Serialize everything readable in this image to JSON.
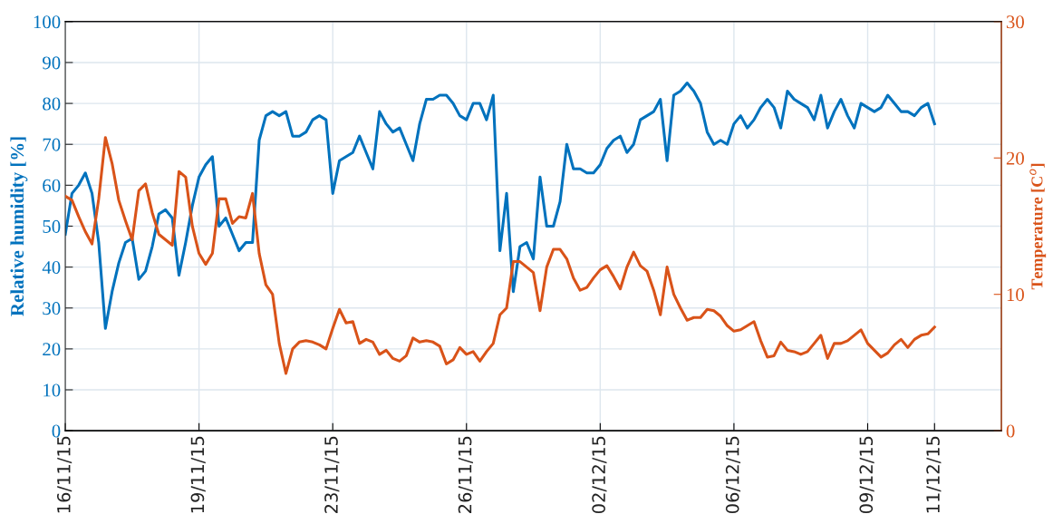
{
  "chart_data": {
    "type": "line",
    "ylabel": "Relative humidity [%]",
    "y2label": "Temperature [C$^{o}$]",
    "categories": [
      "16/11/15",
      null,
      null,
      null,
      null,
      null,
      null,
      null,
      null,
      null,
      null,
      null,
      null,
      null,
      null,
      null,
      null,
      null,
      null,
      null,
      "19/11/15",
      null,
      null,
      null,
      null,
      null,
      null,
      null,
      null,
      null,
      null,
      null,
      null,
      null,
      null,
      null,
      null,
      null,
      null,
      null,
      "23/11/15",
      null,
      null,
      null,
      null,
      null,
      null,
      null,
      null,
      null,
      null,
      null,
      null,
      null,
      null,
      null,
      null,
      null,
      null,
      null,
      "26/11/15",
      null,
      null,
      null,
      null,
      null,
      null,
      null,
      null,
      null,
      null,
      null,
      null,
      null,
      null,
      null,
      null,
      null,
      null,
      null,
      "02/12/15",
      null,
      null,
      null,
      null,
      null,
      null,
      null,
      null,
      null,
      null,
      null,
      null,
      null,
      null,
      null,
      null,
      null,
      null,
      null,
      "06/12/15",
      null,
      null,
      null,
      null,
      null,
      null,
      null,
      null,
      null,
      null,
      null,
      null,
      null,
      null,
      null,
      null,
      null,
      null,
      null,
      "09/12/15",
      null,
      null,
      null,
      null,
      null,
      null,
      null,
      null,
      null,
      "11/12/15",
      null,
      null,
      null,
      null,
      null,
      null,
      null,
      null,
      null,
      null
    ],
    "ylim": [
      0,
      100
    ],
    "yticks": [
      0,
      10,
      20,
      30,
      40,
      50,
      60,
      70,
      80,
      90,
      100
    ],
    "y2lim": [
      0,
      30
    ],
    "y2ticks": [
      0,
      10,
      20,
      30
    ],
    "grid": true,
    "marker": "none",
    "line_style": "solid",
    "series": [
      {
        "color": "#0072bd",
        "values": [
          48,
          58,
          60,
          63,
          58,
          46,
          25,
          34,
          41,
          46,
          47,
          37,
          39,
          45,
          53,
          54,
          52,
          38,
          46,
          55,
          62,
          65,
          67,
          50,
          52,
          48,
          44,
          46,
          46,
          71,
          77,
          78,
          77,
          78,
          72,
          72,
          73,
          76,
          77,
          76,
          58,
          66,
          67,
          68,
          72,
          68,
          64,
          78,
          75,
          73,
          74,
          70,
          66,
          75,
          81,
          81,
          82,
          82,
          80,
          77,
          76,
          80,
          80,
          76,
          82,
          44,
          58,
          34,
          45,
          46,
          42,
          62,
          50,
          50,
          56,
          70,
          64,
          64,
          63,
          63,
          65,
          69,
          71,
          72,
          68,
          70,
          76,
          77,
          78,
          81,
          66,
          82,
          83,
          85,
          83,
          80,
          73,
          70,
          71,
          70,
          75,
          77,
          74,
          76,
          79,
          81,
          79,
          74,
          83,
          81,
          80,
          79,
          76,
          82,
          74,
          78,
          81,
          77,
          74,
          80,
          79,
          78,
          79,
          82,
          80,
          78,
          78,
          77,
          79,
          80,
          75,
          null,
          null,
          null,
          null,
          null,
          null,
          null,
          null,
          null,
          null
        ]
      },
      {
        "color": "#d95319",
        "axis": "y2",
        "values": [
          17.2,
          16.9,
          15.7,
          14.6,
          13.7,
          17.0,
          21.5,
          19.6,
          16.9,
          15.4,
          14.0,
          17.6,
          18.1,
          16.0,
          14.4,
          14.0,
          13.6,
          19.0,
          18.6,
          15.0,
          13.0,
          12.2,
          13.0,
          17.0,
          17.0,
          15.2,
          15.7,
          15.6,
          17.4,
          13.0,
          10.7,
          10.0,
          6.4,
          4.2,
          6.0,
          6.5,
          6.6,
          6.5,
          6.3,
          6.0,
          7.5,
          8.9,
          7.9,
          8.0,
          6.4,
          6.7,
          6.5,
          5.6,
          5.9,
          5.3,
          5.1,
          5.5,
          6.8,
          6.5,
          6.6,
          6.5,
          6.2,
          4.9,
          5.2,
          6.1,
          5.6,
          5.8,
          5.1,
          5.8,
          6.4,
          8.5,
          9.0,
          12.4,
          12.4,
          12.0,
          11.6,
          8.8,
          12.0,
          13.3,
          13.3,
          12.6,
          11.2,
          10.3,
          10.5,
          11.2,
          11.8,
          12.1,
          11.3,
          10.4,
          12.0,
          13.1,
          12.1,
          11.7,
          10.3,
          8.5,
          12.0,
          10.0,
          9.0,
          8.1,
          8.3,
          8.3,
          8.9,
          8.8,
          8.4,
          7.7,
          7.3,
          7.4,
          7.7,
          8.0,
          6.6,
          5.4,
          5.5,
          6.5,
          5.9,
          5.8,
          5.6,
          5.8,
          6.4,
          7.0,
          5.3,
          6.4,
          6.4,
          6.6,
          7.0,
          7.4,
          6.4,
          5.9,
          5.4,
          5.7,
          6.3,
          6.7,
          6.1,
          6.7,
          7.0,
          7.1,
          7.6,
          null,
          null,
          null,
          null,
          null,
          null,
          null,
          null,
          null,
          null
        ]
      }
    ]
  }
}
